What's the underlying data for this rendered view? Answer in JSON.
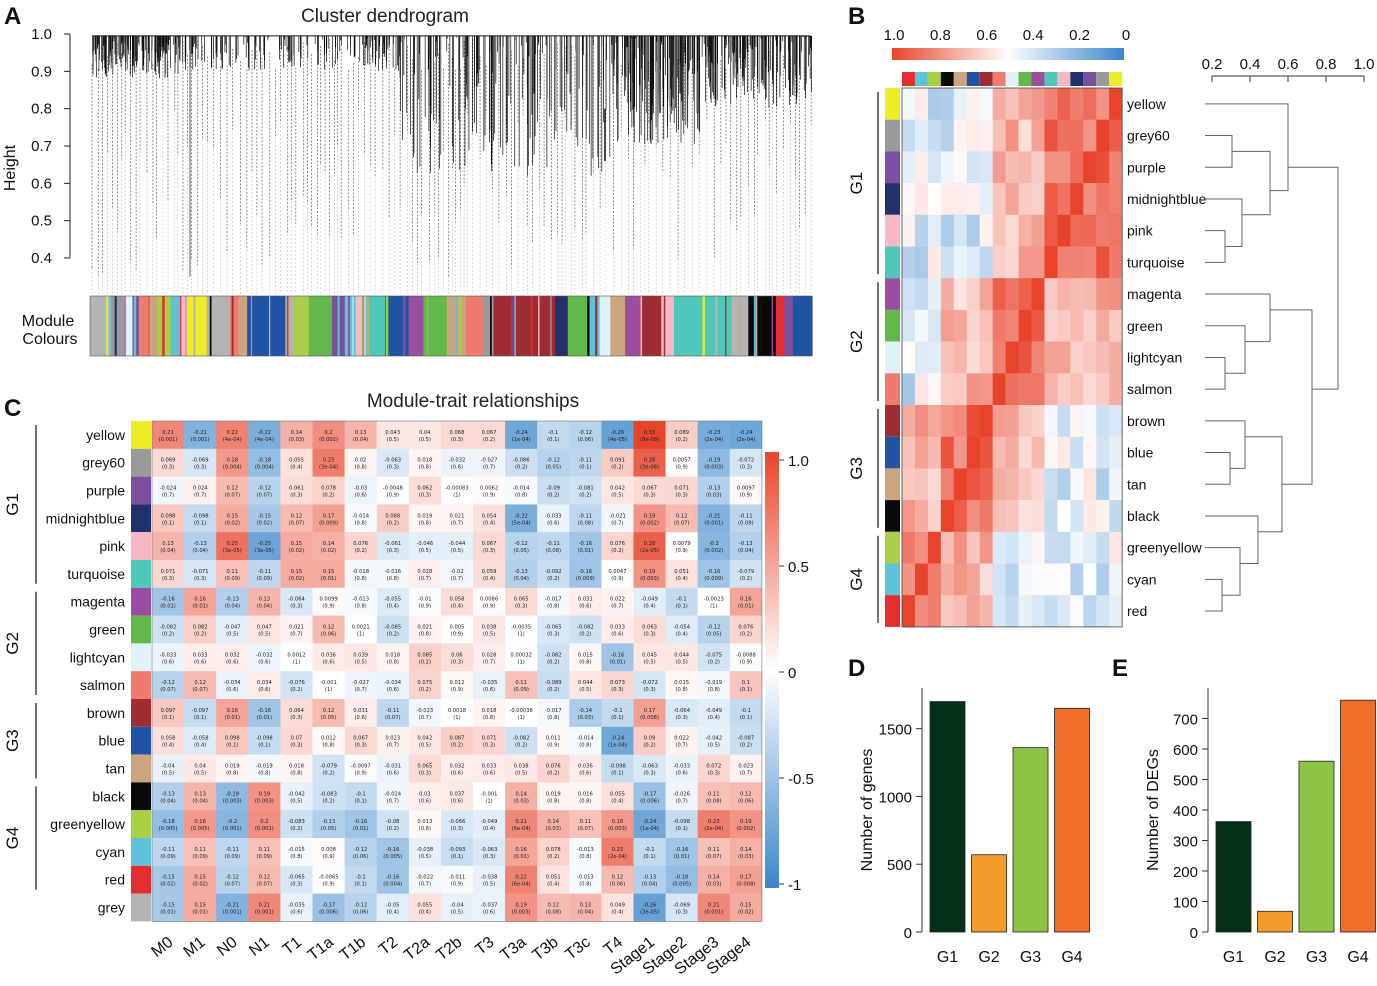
{
  "panels": [
    "A",
    "B",
    "C",
    "D",
    "E"
  ],
  "colors": {
    "yellow": "#ecec27",
    "grey60": "#9a9a9a",
    "purple": "#7b4fa0",
    "midnightblue": "#22306b",
    "pink": "#f6b8c4",
    "turquoise": "#4fc7b9",
    "magenta": "#9a4e9f",
    "green": "#62b84a",
    "lightcyan": "#dff3f6",
    "salmon": "#ef7b6e",
    "brown": "#9e2c33",
    "blue": "#2153a5",
    "tan": "#caa57d",
    "black": "#0a0a0a",
    "greenyellow": "#a8cf46",
    "cyan": "#5ec3d8",
    "red": "#e52d30",
    "grey": "#b3b3b3",
    "heat_high": "#e8442c",
    "heat_mid": "#ffffff",
    "heat_low": "#3b86cb",
    "bar_g1": "#05301a",
    "bar_g2": "#f39c2c",
    "bar_g3": "#8ec446",
    "bar_g4": "#f06e26"
  },
  "dendrogram": {
    "title": "Cluster dendrogram",
    "ylabel": "Height",
    "yticks": [
      "1.0",
      "0.9",
      "0.8",
      "0.7",
      "0.6",
      "0.5",
      "0.4"
    ],
    "module_label_line1": "Module",
    "module_label_line2": "Colours"
  },
  "eigengene": {
    "scale_ticks": [
      "1.0",
      "0.8",
      "0.6",
      "0.4",
      "0.2",
      "0"
    ],
    "tree_ticks": [
      "0.2",
      "0.4",
      "0.6",
      "0.8",
      "1.0"
    ],
    "groups": [
      "G1",
      "G2",
      "G3",
      "G4"
    ],
    "modules": [
      "yellow",
      "grey60",
      "purple",
      "midnightblue",
      "pink",
      "turquoise",
      "magenta",
      "green",
      "lightcyan",
      "salmon",
      "brown",
      "blue",
      "tan",
      "black",
      "greenyellow",
      "cyan",
      "red"
    ]
  },
  "trait": {
    "title": "Module-trait relationships",
    "groups": [
      "G1",
      "G2",
      "G3",
      "G4"
    ],
    "modules": [
      "yellow",
      "grey60",
      "purple",
      "midnightblue",
      "pink",
      "turquoise",
      "magenta",
      "green",
      "lightcyan",
      "salmon",
      "brown",
      "blue",
      "tan",
      "black",
      "greenyellow",
      "cyan",
      "red",
      "grey"
    ],
    "traits": [
      "M0",
      "M1",
      "N0",
      "N1",
      "T1",
      "T1a",
      "T1b",
      "T2",
      "T2a",
      "T2b",
      "T3",
      "T3a",
      "T3b",
      "T3c",
      "T4",
      "Stage1",
      "Stage2",
      "Stage3",
      "Stage4"
    ],
    "legend_ticks": [
      "1.0",
      "0.5",
      "0",
      "-0.5",
      "-1"
    ]
  },
  "chart_data": [
    {
      "type": "bar",
      "title": "",
      "panel": "D",
      "categories": [
        "G1",
        "G2",
        "G3",
        "G4"
      ],
      "values": [
        1700,
        570,
        1360,
        1650
      ],
      "xlabel": "",
      "ylabel": "Number of genes",
      "yticks": [
        "0",
        "500",
        "1000",
        "1500"
      ],
      "ylim": [
        0,
        1800
      ]
    },
    {
      "type": "bar",
      "title": "",
      "panel": "E",
      "categories": [
        "G1",
        "G2",
        "G3",
        "G4"
      ],
      "values": [
        362,
        68,
        560,
        760
      ],
      "xlabel": "",
      "ylabel": "Number of DEGs",
      "yticks": [
        "0",
        "100",
        "200",
        "300",
        "400",
        "500",
        "600",
        "700"
      ],
      "ylim": [
        0,
        800
      ]
    },
    {
      "type": "heatmap",
      "panel": "C",
      "title": "Module-trait relationships",
      "rows": [
        "yellow",
        "grey60",
        "purple",
        "midnightblue",
        "pink",
        "turquoise",
        "magenta",
        "green",
        "lightcyan",
        "salmon",
        "brown",
        "blue",
        "tan",
        "black",
        "greenyellow",
        "cyan",
        "red",
        "grey"
      ],
      "columns": [
        "M0",
        "M1",
        "N0",
        "N1",
        "T1",
        "T1a",
        "T1b",
        "T2",
        "T2a",
        "T2b",
        "T3",
        "T3a",
        "T3b",
        "T3c",
        "T4",
        "Stage1",
        "Stage2",
        "Stage3",
        "Stage4"
      ],
      "correlations": [
        [
          0.21,
          -0.21,
          0.22,
          -0.22,
          0.14,
          0.2,
          0.13,
          0.043,
          0.04,
          0.068,
          0.067,
          -0.24,
          -0.1,
          -0.12,
          -0.26,
          0.33,
          0.089,
          -0.23,
          -0.24
        ],
        [
          0.069,
          -0.069,
          0.18,
          -0.18,
          0.055,
          0.23,
          0.02,
          -0.063,
          0.018,
          -0.032,
          -0.027,
          -0.086,
          -0.12,
          -0.11,
          0.091,
          0.28,
          0.0057,
          -0.19,
          -0.072
        ],
        [
          -0.024,
          0.024,
          0.12,
          -0.12,
          0.061,
          0.078,
          -0.03,
          -0.0048,
          0.062,
          -0.00083,
          0.0062,
          -0.014,
          -0.09,
          -0.081,
          0.042,
          0.067,
          0.071,
          -0.13,
          0.0097
        ],
        [
          0.098,
          -0.098,
          0.15,
          -0.15,
          0.12,
          0.17,
          -0.014,
          0.088,
          0.019,
          0.021,
          0.054,
          -0.22,
          -0.033,
          -0.11,
          -0.021,
          0.19,
          0.12,
          -0.21,
          -0.11
        ],
        [
          0.13,
          -0.13,
          0.25,
          -0.25,
          0.15,
          0.14,
          0.076,
          -0.061,
          -0.046,
          -0.044,
          0.067,
          -0.12,
          -0.11,
          -0.16,
          0.076,
          0.28,
          0.0079,
          -0.2,
          -0.13
        ],
        [
          0.071,
          -0.071,
          0.11,
          -0.11,
          0.15,
          0.15,
          -0.018,
          -0.016,
          0.028,
          -0.02,
          0.059,
          -0.13,
          -0.092,
          -0.16,
          0.0047,
          0.19,
          0.051,
          -0.16,
          -0.079
        ],
        [
          -0.16,
          0.16,
          -0.13,
          0.13,
          -0.064,
          0.0099,
          -0.013,
          -0.055,
          -0.01,
          0.058,
          0.0086,
          0.065,
          -0.017,
          0.031,
          0.022,
          -0.049,
          -0.1,
          -0.0023,
          0.16
        ],
        [
          -0.082,
          0.082,
          -0.047,
          0.047,
          0.021,
          0.12,
          0.0021,
          -0.085,
          0.021,
          0.005,
          0.038,
          -0.0035,
          -0.065,
          -0.082,
          0.033,
          0.063,
          -0.054,
          -0.12,
          0.076
        ],
        [
          -0.033,
          0.033,
          0.032,
          -0.032,
          0.0012,
          0.036,
          0.039,
          0.018,
          0.085,
          0.06,
          0.028,
          0.00032,
          -0.082,
          0.015,
          -0.16,
          0.045,
          0.044,
          -0.075,
          -0.0088
        ],
        [
          -0.12,
          0.12,
          -0.034,
          0.034,
          -0.076,
          -0.001,
          -0.027,
          -0.034,
          0.075,
          0.012,
          -0.035,
          0.11,
          -0.089,
          0.044,
          0.073,
          -0.072,
          0.015,
          -0.019,
          0.1
        ],
        [
          0.097,
          -0.097,
          0.16,
          -0.16,
          0.064,
          0.12,
          0.031,
          -0.11,
          -0.023,
          0.0018,
          0.018,
          -0.00038,
          -0.017,
          -0.14,
          -0.1,
          0.17,
          -0.064,
          -0.049,
          -0.1
        ],
        [
          0.058,
          -0.058,
          0.098,
          -0.098,
          0.07,
          0.012,
          0.067,
          0.023,
          0.042,
          0.087,
          0.071,
          -0.082,
          0.011,
          -0.014,
          -0.24,
          0.09,
          0.022,
          -0.042,
          -0.087
        ],
        [
          -0.04,
          0.04,
          0.019,
          -0.019,
          0.018,
          -0.079,
          -0.0097,
          -0.031,
          0.065,
          0.032,
          0.033,
          0.038,
          0.076,
          0.036,
          -0.098,
          -0.063,
          -0.033,
          0.072,
          0.023
        ],
        [
          -0.13,
          0.13,
          -0.19,
          0.19,
          -0.042,
          -0.083,
          -0.1,
          -0.024,
          0.03,
          0.037,
          -0.001,
          0.14,
          0.019,
          0.016,
          0.055,
          -0.17,
          -0.026,
          0.11,
          0.12
        ],
        [
          -0.18,
          0.18,
          -0.2,
          0.2,
          -0.083,
          -0.13,
          -0.16,
          -0.08,
          0.013,
          -0.066,
          -0.049,
          0.21,
          0.14,
          0.11,
          0.18,
          -0.24,
          -0.098,
          0.23,
          0.19
        ],
        [
          -0.11,
          0.11,
          -0.11,
          0.11,
          -0.015,
          0.008,
          -0.12,
          -0.16,
          -0.038,
          -0.093,
          -0.063,
          0.16,
          0.078,
          -0.013,
          0.23,
          -0.1,
          -0.16,
          0.11,
          0.14
        ],
        [
          -0.15,
          0.15,
          -0.12,
          0.12,
          -0.065,
          -0.0065,
          -0.1,
          -0.16,
          -0.022,
          -0.011,
          -0.038,
          0.22,
          0.051,
          -0.013,
          0.12,
          -0.13,
          -0.18,
          0.14,
          0.17
        ],
        [
          -0.15,
          0.15,
          -0.21,
          0.21,
          -0.035,
          -0.17,
          -0.12,
          -0.05,
          0.055,
          -0.04,
          -0.037,
          0.19,
          0.12,
          0.13,
          0.049,
          -0.26,
          -0.069,
          0.21,
          0.15
        ]
      ],
      "pvalues": [
        [
          "0.001",
          "0.001",
          "4e-04",
          "4e-04",
          "0.03",
          "0.002",
          "0.04",
          "0.5",
          "0.5",
          "0.3",
          "0.2",
          "1e-04",
          "0.1",
          "0.06",
          "4e-05",
          "8e-08",
          "0.2",
          "2e-04",
          "2e-04"
        ],
        [
          "0.3",
          "0.3",
          "0.004",
          "0.004",
          "0.4",
          "3e-04",
          "0.8",
          "0.3",
          "0.8",
          "0.6",
          "0.7",
          "0.2",
          "0.05",
          "0.1",
          "0.2",
          "3e-06",
          "0.9",
          "0.003",
          "0.3"
        ],
        [
          "0.7",
          "0.7",
          "0.07",
          "0.07",
          "0.3",
          "0.2",
          "0.6",
          "0.9",
          "0.3",
          "1",
          "0.9",
          "0.8",
          "0.2",
          "0.2",
          "0.5",
          "0.3",
          "0.3",
          "0.03",
          "0.9"
        ],
        [
          "0.1",
          "0.1",
          "0.02",
          "0.02",
          "0.07",
          "0.009",
          "0.8",
          "0.2",
          "0.8",
          "0.7",
          "0.4",
          "5e-04",
          "0.6",
          "0.08",
          "0.7",
          "0.002",
          "0.07",
          "0.001",
          "0.09"
        ],
        [
          "0.04",
          "0.04",
          "3e-05",
          "3e-05",
          "0.02",
          "0.02",
          "0.2",
          "0.3",
          "0.5",
          "0.5",
          "0.3",
          "0.05",
          "0.08",
          "0.01",
          "0.2",
          "2e-05",
          "0.9",
          "0.002",
          "0.04"
        ],
        [
          "0.3",
          "0.3",
          "0.09",
          "0.09",
          "0.02",
          "0.01",
          "0.8",
          "0.8",
          "0.7",
          "0.7",
          "0.4",
          "0.04",
          "0.2",
          "0.009",
          "0.9",
          "0.003",
          "0.4",
          "0.009",
          "0.2"
        ],
        [
          "0.01",
          "0.01",
          "0.04",
          "0.04",
          "0.3",
          "0.9",
          "0.8",
          "0.4",
          "0.9",
          "0.4",
          "0.9",
          "0.3",
          "0.8",
          "0.6",
          "0.7",
          "0.4",
          "0.1",
          "1",
          "0.01"
        ],
        [
          "0.2",
          "0.2",
          "0.5",
          "0.5",
          "0.7",
          "0.06",
          "1",
          "0.2",
          "0.8",
          "0.9",
          "0.5",
          "1",
          "0.3",
          "0.2",
          "0.6",
          "0.3",
          "0.4",
          "0.05",
          "0.2"
        ],
        [
          "0.6",
          "0.6",
          "0.6",
          "0.6",
          "1",
          "0.6",
          "0.5",
          "0.8",
          "0.2",
          "0.3",
          "0.7",
          "1",
          "0.2",
          "0.8",
          "0.01",
          "0.5",
          "0.5",
          "0.2",
          "0.9"
        ],
        [
          "0.07",
          "0.07",
          "0.6",
          "0.6",
          "0.2",
          "1",
          "0.7",
          "0.6",
          "0.2",
          "0.9",
          "0.6",
          "0.09",
          "0.2",
          "0.5",
          "0.3",
          "0.3",
          "0.8",
          "0.8",
          "0.1"
        ],
        [
          "0.1",
          "0.1",
          "0.01",
          "0.01",
          "0.3",
          "0.05",
          "0.6",
          "0.07",
          "0.7",
          "1",
          "0.8",
          "1",
          "0.8",
          "0.03",
          "0.1",
          "0.008",
          "0.3",
          "0.4",
          "0.1"
        ],
        [
          "0.4",
          "0.4",
          "0.1",
          "0.1",
          "0.3",
          "0.8",
          "0.3",
          "0.7",
          "0.5",
          "0.2",
          "0.3",
          "0.2",
          "0.9",
          "0.8",
          "1e-04",
          "0.2",
          "0.7",
          "0.5",
          "0.2"
        ],
        [
          "0.5",
          "0.5",
          "0.8",
          "0.8",
          "0.8",
          "0.2",
          "0.9",
          "0.6",
          "0.3",
          "0.6",
          "0.6",
          "0.5",
          "0.2",
          "0.6",
          "0.1",
          "0.3",
          "0.6",
          "0.3",
          "0.7"
        ],
        [
          "0.04",
          "0.04",
          "0.003",
          "0.003",
          "0.5",
          "0.2",
          "0.1",
          "0.7",
          "0.6",
          "0.6",
          "1",
          "0.03",
          "0.8",
          "0.8",
          "0.4",
          "0.006",
          "0.7",
          "0.08",
          "0.06"
        ],
        [
          "0.005",
          "0.005",
          "0.001",
          "0.001",
          "0.2",
          "0.05",
          "0.01",
          "0.2",
          "0.8",
          "0.3",
          "0.4",
          "6e-04",
          "0.03",
          "0.07",
          "0.003",
          "1e-04",
          "0.1",
          "2e-04",
          "0.002"
        ],
        [
          "0.09",
          "0.09",
          "0.09",
          "0.09",
          "0.8",
          "0.9",
          "0.06",
          "0.005",
          "0.5",
          "0.1",
          "0.3",
          "0.01",
          "0.2",
          "0.8",
          "2e-04",
          "0.1",
          "0.01",
          "0.07",
          "0.03"
        ],
        [
          "0.02",
          "0.02",
          "0.07",
          "0.07",
          "0.3",
          "0.9",
          "0.1",
          "0.004",
          "0.7",
          "0.9",
          "0.5",
          "6e-04",
          "0.4",
          "0.8",
          "0.06",
          "0.04",
          "0.005",
          "0.03",
          "0.008"
        ],
        [
          "0.01",
          "0.01",
          "0.001",
          "0.001",
          "0.6",
          "0.006",
          "0.06",
          "0.4",
          "0.4",
          "0.5",
          "0.6",
          "0.003",
          "0.08",
          "0.04",
          "0.4",
          "3e-05",
          "0.3",
          "0.001",
          "0.02"
        ]
      ],
      "scale": [
        -1,
        1
      ]
    },
    {
      "type": "heatmap",
      "panel": "B",
      "title": "",
      "rows": [
        "yellow",
        "grey60",
        "purple",
        "midnightblue",
        "pink",
        "turquoise",
        "magenta",
        "green",
        "lightcyan",
        "salmon",
        "brown",
        "blue",
        "tan",
        "black",
        "greenyellow",
        "cyan",
        "red"
      ],
      "columns": [
        "red",
        "cyan",
        "greenyellow",
        "black",
        "tan",
        "blue",
        "brown",
        "salmon",
        "lightcyan",
        "green",
        "magenta",
        "turquoise",
        "pink",
        "midnightblue",
        "purple",
        "grey60",
        "yellow"
      ],
      "scale": [
        0,
        1
      ]
    }
  ]
}
